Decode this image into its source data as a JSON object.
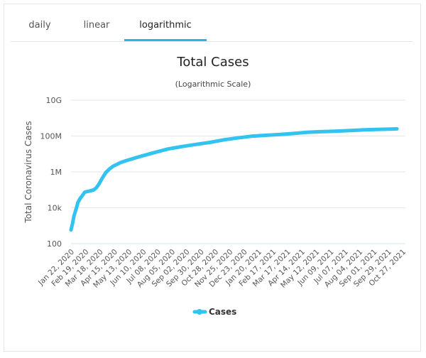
{
  "tabs": [
    {
      "label": "daily",
      "active": false
    },
    {
      "label": "linear",
      "active": false
    },
    {
      "label": "logarithmic",
      "active": true
    }
  ],
  "colors": {
    "accent": "#2ab4e8",
    "series": "#33c3f0",
    "grid": "#e6e6e6"
  },
  "chart_data": {
    "type": "line",
    "title": "Total Cases",
    "subtitle": "(Logarithmic Scale)",
    "xlabel": "",
    "ylabel": "Total Coronavirus Cases",
    "yscale": "log",
    "ylim": [
      100,
      10000000000
    ],
    "y_ticks": [
      {
        "value": 100,
        "label": "100"
      },
      {
        "value": 10000,
        "label": "10k"
      },
      {
        "value": 1000000,
        "label": "1M"
      },
      {
        "value": 100000000,
        "label": "100M"
      },
      {
        "value": 10000000000,
        "label": "10G"
      }
    ],
    "x_tick_labels": [
      "Jan 22, 2020",
      "Feb 19, 2020",
      "Mar 18, 2020",
      "Apr 15, 2020",
      "May 13, 2020",
      "Jun 10, 2020",
      "Jul 08, 2020",
      "Aug 05, 2020",
      "Sep 02, 2020",
      "Sep 30, 2020",
      "Oct 28, 2020",
      "Nov 25, 2020",
      "Dec 23, 2020",
      "Jan 20, 2021",
      "Feb 17, 2021",
      "Mar 17, 2021",
      "Apr 14, 2021",
      "May 12, 2021",
      "Jun 09, 2021",
      "Jul 07, 2021",
      "Aug 04, 2021",
      "Sep 01, 2021",
      "Sep 29, 2021",
      "Oct 27, 2021"
    ],
    "grid": true,
    "legend_position": "bottom",
    "series": [
      {
        "name": "Cases",
        "x": [
          "2020-01-22",
          "2020-01-25",
          "2020-01-28",
          "2020-02-01",
          "2020-02-05",
          "2020-02-10",
          "2020-02-19",
          "2020-03-01",
          "2020-03-08",
          "2020-03-13",
          "2020-03-18",
          "2020-03-25",
          "2020-04-01",
          "2020-04-08",
          "2020-04-15",
          "2020-05-01",
          "2020-05-13",
          "2020-06-10",
          "2020-07-08",
          "2020-08-05",
          "2020-09-02",
          "2020-09-30",
          "2020-10-28",
          "2020-11-25",
          "2020-12-23",
          "2021-01-20",
          "2021-02-17",
          "2021-03-17",
          "2021-04-14",
          "2021-05-12",
          "2021-06-09",
          "2021-07-07",
          "2021-08-04",
          "2021-09-01",
          "2021-09-29",
          "2021-10-27",
          "2021-11-10"
        ],
        "y": [
          580,
          1300,
          3500,
          8000,
          20000,
          35000,
          75000,
          88000,
          100000,
          130000,
          200000,
          450000,
          900000,
          1400000,
          2000000,
          3300000,
          4300000,
          7300000,
          12000000,
          19000000,
          26000000,
          34000000,
          44000000,
          61000000,
          78000000,
          97000000,
          110000000,
          121000000,
          137000000,
          160000000,
          175000000,
          185000000,
          200000000,
          220000000,
          233000000,
          245000000,
          252000000
        ]
      }
    ]
  }
}
